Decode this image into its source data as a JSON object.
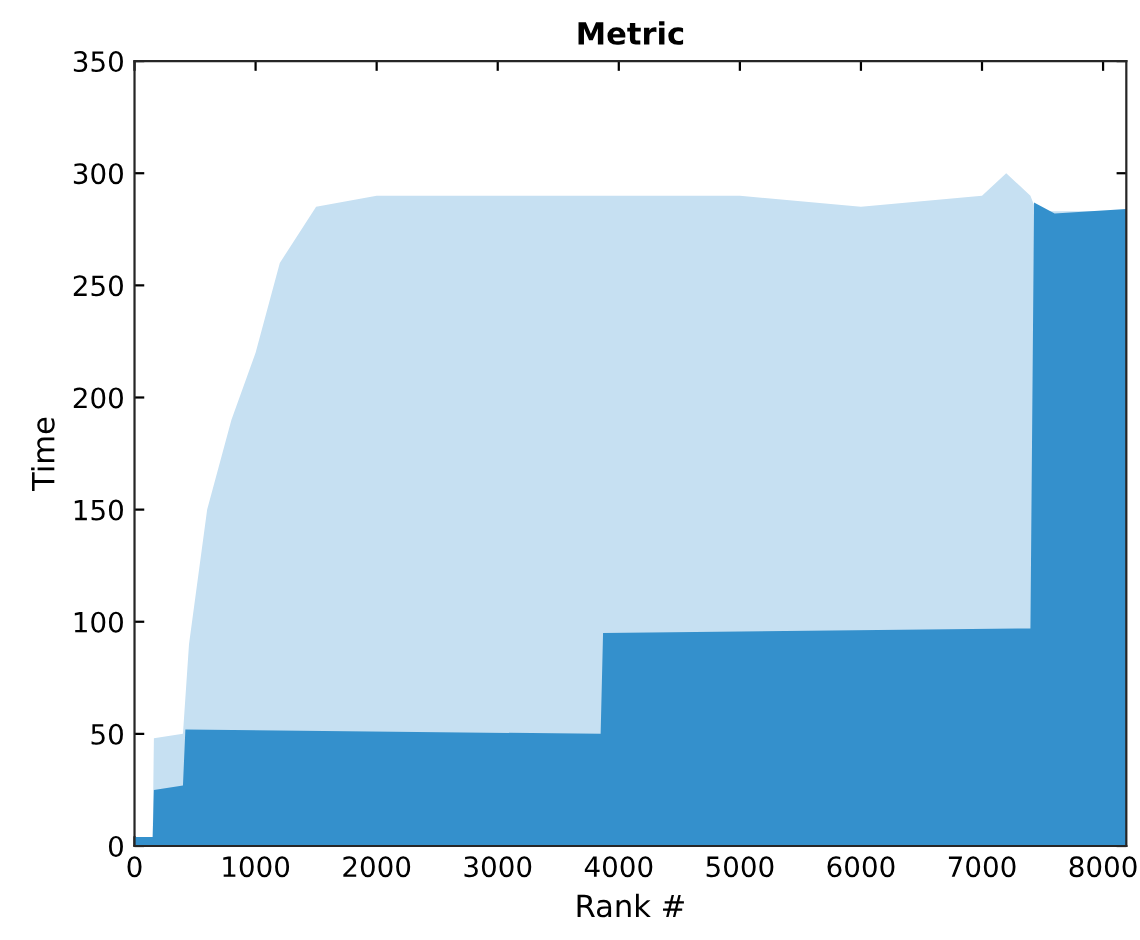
{
  "chart_data": {
    "type": "area",
    "title": "Metric",
    "xlabel": "Rank #",
    "ylabel": "Time",
    "xlim": [
      0,
      8192
    ],
    "xticks": [
      0,
      1000,
      2000,
      3000,
      4000,
      5000,
      6000,
      7000,
      8000
    ],
    "ylim": [
      0,
      350
    ],
    "yticks": [
      0,
      50,
      100,
      150,
      200,
      250,
      300,
      350
    ],
    "grid": false,
    "series": [
      {
        "color": "#c6e0f2",
        "x": [
          0,
          150,
          160,
          400,
          450,
          600,
          800,
          1000,
          1200,
          1500,
          2000,
          3000,
          4000,
          5000,
          6000,
          7000,
          7200,
          7400,
          7450,
          8192
        ],
        "values": [
          4,
          4,
          48,
          50,
          90,
          150,
          190,
          220,
          260,
          285,
          290,
          290,
          290,
          290,
          285,
          290,
          300,
          290,
          283,
          283
        ]
      },
      {
        "color": "#3490cc",
        "x": [
          0,
          150,
          160,
          400,
          420,
          3850,
          3870,
          7400,
          7430,
          7600,
          8192
        ],
        "values": [
          4,
          4,
          25,
          27,
          52,
          50,
          95,
          97,
          287,
          282,
          284
        ]
      }
    ]
  }
}
